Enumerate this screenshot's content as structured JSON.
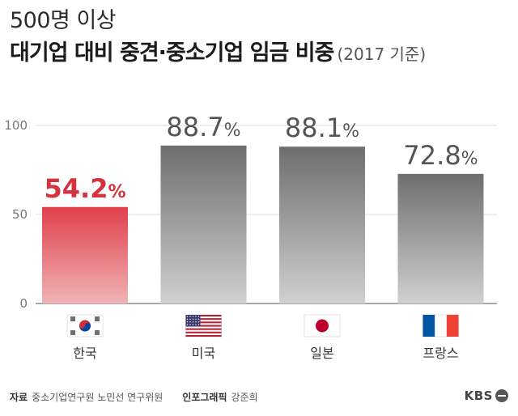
{
  "header": {
    "subtitle": "500명 이상",
    "title": "대기업 대비 중견·중소기업 임금 비중",
    "title_note": "(2017 기준)"
  },
  "chart_data": {
    "type": "bar",
    "categories": [
      "한국",
      "미국",
      "일본",
      "프랑스"
    ],
    "values": [
      54.2,
      88.7,
      88.1,
      72.8
    ],
    "value_labels": [
      "54.2",
      "88.7",
      "88.1",
      "72.8"
    ],
    "unit": "%",
    "ylim": [
      0,
      100
    ],
    "yticks": [
      0,
      50,
      100
    ],
    "grid": true,
    "xlabel": "",
    "ylabel": "",
    "flags": [
      "korea-flag-icon",
      "usa-flag-icon",
      "japan-flag-icon",
      "france-flag-icon"
    ],
    "colors": {
      "highlight_top": "#e0404b",
      "highlight_bottom": "#f0b3b6",
      "highlight_label": "#d4323d",
      "bar_top": "#6e6e6e",
      "bar_bottom": "#d0d0d0",
      "label": "#555555"
    }
  },
  "footer": {
    "source_label": "자료",
    "source_text": "중소기업연구원 노민선 연구위원",
    "graphic_label": "인포그래픽",
    "graphic_text": "강준희",
    "logo": "KBS"
  }
}
